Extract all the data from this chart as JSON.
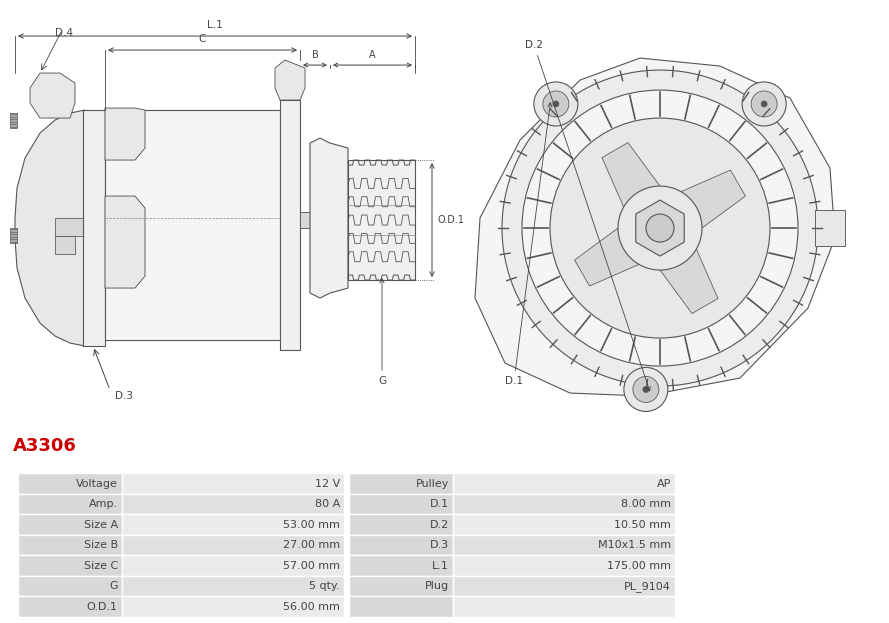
{
  "title": "A3306",
  "title_color": "#cc0000",
  "bg_color": "#ffffff",
  "line_color": "#555555",
  "dim_color": "#444444",
  "fill_light": "#f5f5f5",
  "fill_mid": "#e8e8e8",
  "fill_dark": "#d8d8d8",
  "table": {
    "left_col": [
      [
        "Voltage",
        "12 V"
      ],
      [
        "Amp.",
        "80 A"
      ],
      [
        "Size A",
        "53.00 mm"
      ],
      [
        "Size B",
        "27.00 mm"
      ],
      [
        "Size C",
        "57.00 mm"
      ],
      [
        "G",
        "5 qty."
      ],
      [
        "O.D.1",
        "56.00 mm"
      ]
    ],
    "right_col": [
      [
        "Pulley",
        "AP"
      ],
      [
        "D.1",
        "8.00 mm"
      ],
      [
        "D.2",
        "10.50 mm"
      ],
      [
        "D.3",
        "M10x1.5 mm"
      ],
      [
        "L.1",
        "175.00 mm"
      ],
      [
        "Plug",
        "PL_9104"
      ],
      [
        "",
        ""
      ]
    ]
  },
  "row_label_bg": "#d8d8d8",
  "row_val_bg1": "#ebebeb",
  "row_val_bg2": "#e0e0e0",
  "cell_text_color": "#444444",
  "divider_color": "#ffffff"
}
